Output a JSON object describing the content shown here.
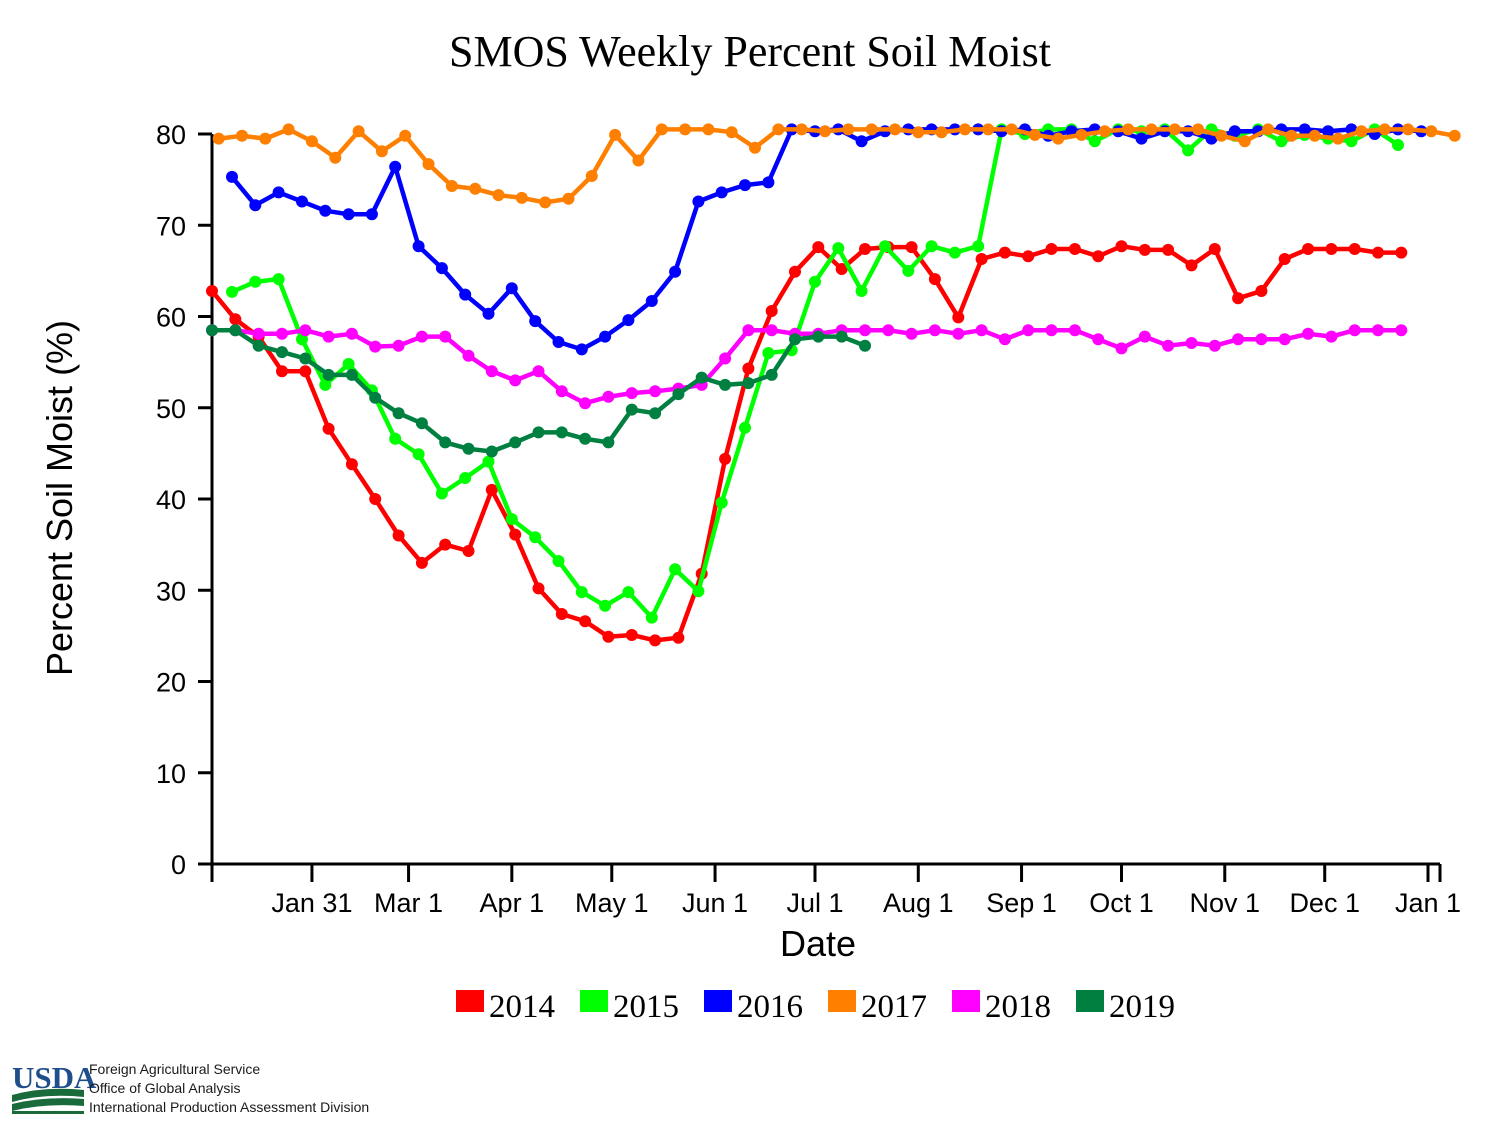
{
  "chart_data": {
    "type": "line",
    "title": "SMOS Weekly Percent Soil Moist",
    "xlabel": "Date",
    "ylabel": "Percent Soil Moist (%)",
    "ylim": [
      0,
      80
    ],
    "yticks": [
      0,
      10,
      20,
      30,
      40,
      50,
      60,
      70,
      80
    ],
    "xlim": [
      1,
      366
    ],
    "xticks": [
      {
        "label": "Jan 31",
        "day": 31
      },
      {
        "label": "Mar 1",
        "day": 60
      },
      {
        "label": "Apr 1",
        "day": 91
      },
      {
        "label": "May 1",
        "day": 121
      },
      {
        "label": "Jun 1",
        "day": 152
      },
      {
        "label": "Jul 1",
        "day": 182
      },
      {
        "label": "Aug 1",
        "day": 213
      },
      {
        "label": "Sep 1",
        "day": 244
      },
      {
        "label": "Oct 1",
        "day": 274
      },
      {
        "label": "Nov 1",
        "day": 305
      },
      {
        "label": "Dec 1",
        "day": 335
      },
      {
        "label": "Jan 1",
        "day": 366
      }
    ],
    "week_spacing_days": 7,
    "series": [
      {
        "name": "2014",
        "color": "#ff0000",
        "start_day": 1,
        "values": [
          62.8,
          59.7,
          57.8,
          54,
          54,
          47.7,
          43.8,
          40,
          36,
          33,
          35,
          34.3,
          41,
          36.1,
          30.2,
          27.4,
          26.6,
          24.9,
          25.1,
          24.5,
          24.8,
          31.8,
          44.4,
          54.3,
          60.6,
          64.9,
          67.6,
          65.2,
          67.4,
          67.6,
          67.6,
          64.1,
          59.9,
          66.3,
          67,
          66.6,
          67.4,
          67.4,
          66.6,
          67.7,
          67.3,
          67.3,
          65.6,
          67.4,
          62,
          62.8,
          66.3,
          67.4,
          67.4,
          67.4,
          67,
          67
        ]
      },
      {
        "name": "2015",
        "color": "#00ff00",
        "start_day": 7,
        "values": [
          62.7,
          63.8,
          64.1,
          57.5,
          52.5,
          54.8,
          51.9,
          46.6,
          44.9,
          40.6,
          42.3,
          44.1,
          37.8,
          35.8,
          33.2,
          29.8,
          28.3,
          29.8,
          27,
          32.3,
          29.9,
          39.6,
          47.8,
          56,
          56.3,
          63.8,
          67.5,
          62.8,
          67.7,
          65,
          67.7,
          67,
          67.7,
          80.5,
          80,
          80.5,
          80.5,
          79.2,
          80.5,
          80.3,
          80.5,
          78.2,
          80.5,
          79.8,
          80.5,
          79.2,
          79.9,
          79.5,
          79.2,
          80.5,
          78.8
        ]
      },
      {
        "name": "2016",
        "color": "#0000ff",
        "start_day": 7,
        "values": [
          75.3,
          72.2,
          73.6,
          72.6,
          71.6,
          71.2,
          71.2,
          76.4,
          67.7,
          65.3,
          62.4,
          60.3,
          63.1,
          59.5,
          57.2,
          56.4,
          57.8,
          59.6,
          61.7,
          64.9,
          72.6,
          73.6,
          74.4,
          74.7,
          80.5,
          80.3,
          80.5,
          79.2,
          80.3,
          80.5,
          80.5,
          80.5,
          80.5,
          80.3,
          80.5,
          79.8,
          80.3,
          80.5,
          80.3,
          79.5,
          80.3,
          80.3,
          79.5,
          80.3,
          80.3,
          80.5,
          80.5,
          80.3,
          80.5,
          80,
          80.5,
          80.3
        ]
      },
      {
        "name": "2017",
        "color": "#ff8000",
        "start_day": 3,
        "values": [
          79.5,
          79.8,
          79.5,
          80.5,
          79.2,
          77.4,
          80.3,
          78.1,
          79.8,
          76.7,
          74.3,
          74,
          73.3,
          73,
          72.5,
          72.9,
          75.4,
          79.9,
          77.1,
          80.5,
          80.5,
          80.5,
          80.2,
          78.5,
          80.5,
          80.5,
          80.3,
          80.5,
          80.5,
          80.5,
          80.2,
          80.2,
          80.5,
          80.5,
          80.5,
          79.9,
          79.5,
          79.9,
          80.3,
          80.5,
          80.5,
          80.5,
          80.5,
          79.8,
          79.2,
          80.5,
          79.8,
          79.8,
          79.5,
          80.3,
          80.5,
          80.5,
          80.3,
          79.8
        ]
      },
      {
        "name": "2018",
        "color": "#ff00ff",
        "start_day": 1,
        "values": [
          58.5,
          58.5,
          58.1,
          58.1,
          58.5,
          57.8,
          58.1,
          56.7,
          56.8,
          57.8,
          57.8,
          55.7,
          54,
          53,
          54,
          51.8,
          50.5,
          51.2,
          51.6,
          51.8,
          52.1,
          52.5,
          55.4,
          58.5,
          58.5,
          58.1,
          58.1,
          58.5,
          58.5,
          58.5,
          58.1,
          58.5,
          58.1,
          58.5,
          57.5,
          58.5,
          58.5,
          58.5,
          57.5,
          56.5,
          57.8,
          56.8,
          57.1,
          56.8,
          57.5,
          57.5,
          57.5,
          58.1,
          57.8,
          58.5,
          58.5,
          58.5
        ]
      },
      {
        "name": "2019",
        "color": "#008040",
        "start_day": 1,
        "values": [
          58.5,
          58.5,
          56.8,
          56.1,
          55.4,
          53.6,
          53.6,
          51.1,
          49.4,
          48.3,
          46.2,
          45.5,
          45.2,
          46.2,
          47.3,
          47.3,
          46.6,
          46.2,
          49.8,
          49.4,
          51.5,
          53.3,
          52.5,
          52.7,
          53.6,
          57.5,
          57.8,
          57.8,
          56.8
        ]
      }
    ]
  },
  "legend": {
    "items": [
      {
        "label": "2014",
        "color": "#ff0000"
      },
      {
        "label": "2015",
        "color": "#00ff00"
      },
      {
        "label": "2016",
        "color": "#0000ff"
      },
      {
        "label": "2017",
        "color": "#ff8000"
      },
      {
        "label": "2018",
        "color": "#ff00ff"
      },
      {
        "label": "2019",
        "color": "#008040"
      }
    ]
  },
  "footer": {
    "logo_text": "USDA",
    "lines": [
      "Foreign Agricultural Service",
      "Office of Global Analysis",
      "International Production Assessment Division"
    ]
  }
}
